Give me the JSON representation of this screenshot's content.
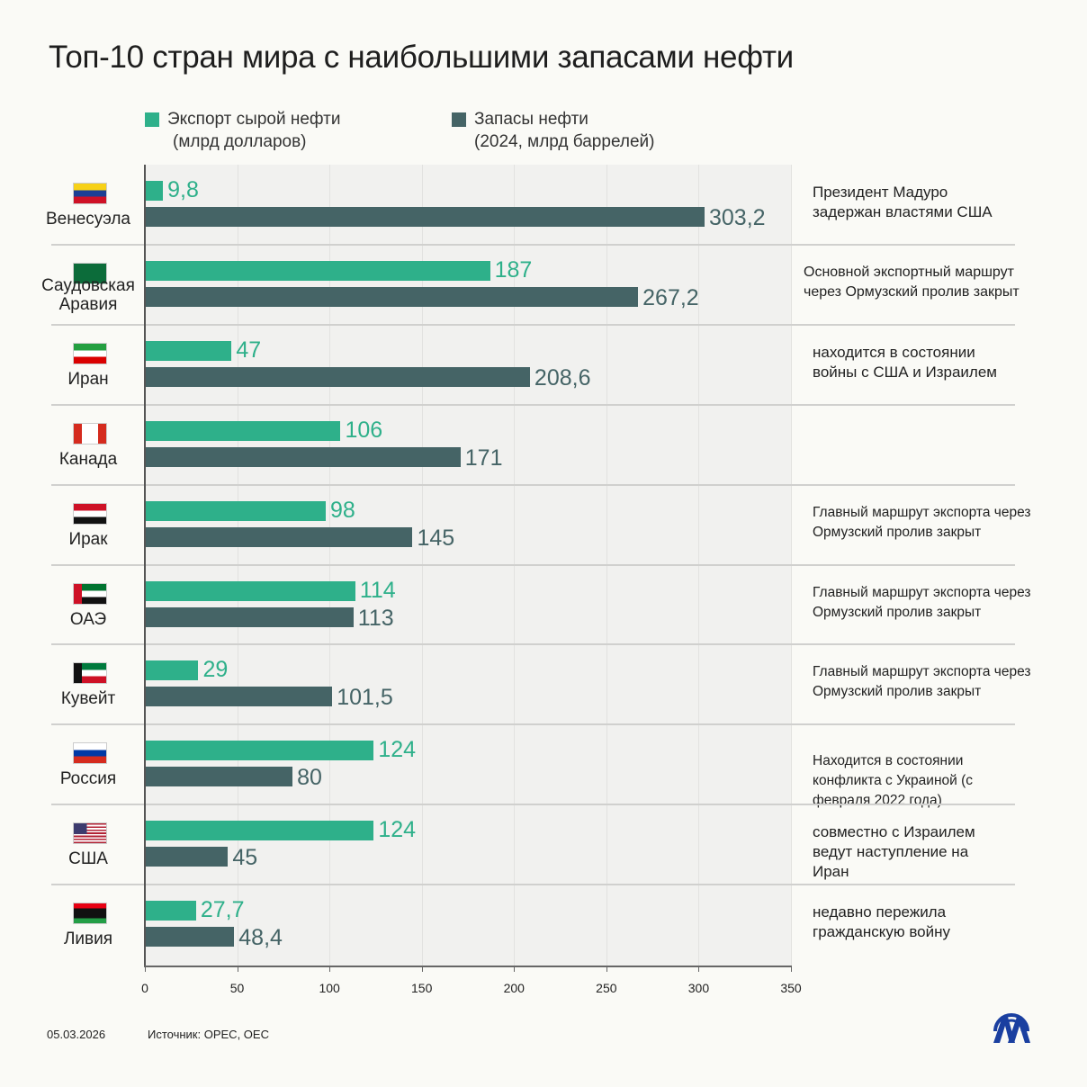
{
  "title": "Топ-10 стран мира с наибольшими запасами нефти",
  "legend": [
    {
      "line1": "Экспорт сырой нефти",
      "line2": "(млрд долларов)",
      "color": "#2eb08a"
    },
    {
      "line1": "Запасы нефти",
      "line2": "(2024, млрд баррелей)",
      "color": "#456466"
    }
  ],
  "chart_data": {
    "type": "bar",
    "orientation": "horizontal",
    "categories": [
      "Венесуэла",
      "Саудовская Аравия",
      "Иран",
      "Канада",
      "Ирак",
      "ОАЭ",
      "Кувейт",
      "Россия",
      "США",
      "Ливия"
    ],
    "value_labels": {
      "export": [
        "9,8",
        "187",
        "47",
        "106",
        "98",
        "114",
        "29",
        "124",
        "124",
        "27,7"
      ],
      "reserves": [
        "303,2",
        "267,2",
        "208,6",
        "171",
        "145",
        "113",
        "101,5",
        "80",
        "45",
        "48,4"
      ]
    },
    "series": [
      {
        "name": "Экспорт сырой нефти (млрд долларов)",
        "color": "#2eb08a",
        "values": [
          9.8,
          187,
          47,
          106,
          98,
          114,
          29,
          124,
          124,
          27.7
        ]
      },
      {
        "name": "Запасы нефти (2024, млрд баррелей)",
        "color": "#456466",
        "values": [
          303.2,
          267.2,
          208.6,
          171,
          145,
          113,
          101.5,
          80,
          45,
          48.4
        ]
      }
    ],
    "xlim": [
      0,
      350
    ],
    "xticks": [
      "0",
      "50",
      "100",
      "150",
      "200",
      "250",
      "300",
      "350"
    ],
    "grid": true,
    "legend_position": "top"
  },
  "countries": [
    {
      "name": "Венесуэла",
      "flag": "venezuela",
      "note": "Президент Мадуро задержан властями США",
      "small": false
    },
    {
      "name": "Саудовская Аравия",
      "flag": "saudi-arabia",
      "note": "Основной экспортный маршрут через Ормузский пролив закрыт",
      "small": false
    },
    {
      "name": "Иран",
      "flag": "iran",
      "note": "находится в состоянии войны с США и Израилем",
      "small": false
    },
    {
      "name": "Канада",
      "flag": "canada",
      "note": "",
      "small": false
    },
    {
      "name": "Ирак",
      "flag": "iraq",
      "note": "Главный маршрут экспорта через Ормузский пролив закрыт",
      "small": true
    },
    {
      "name": "ОАЭ",
      "flag": "uae",
      "note": "Главный маршрут экспорта через Ормузский пролив закрыт",
      "small": true
    },
    {
      "name": "Кувейт",
      "flag": "kuwait",
      "note": "Главный маршрут экспорта через Ормузский пролив закрыт",
      "small": true
    },
    {
      "name": "Россия",
      "flag": "russia",
      "note": "Находится в состоянии конфликта с Украиной (с февраля 2022 года)",
      "small": true
    },
    {
      "name": "США",
      "flag": "usa",
      "note": "совместно с Израилем ведут наступление на Иран",
      "small": false
    },
    {
      "name": "Ливия",
      "flag": "libya",
      "note": "недавно пережила гражданскую войну",
      "small": false
    }
  ],
  "footer": {
    "date": "05.03.2026",
    "source": "Источник: OPEC, OEC",
    "logo": "AA"
  }
}
